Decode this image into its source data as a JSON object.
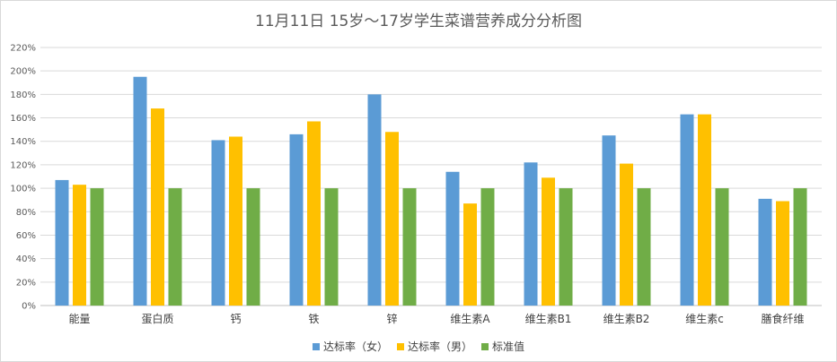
{
  "chart_data": {
    "type": "bar",
    "title": "11月11日 15岁～17岁学生菜谱营养成分分析图",
    "categories": [
      "能量",
      "蛋白质",
      "钙",
      "铁",
      "锌",
      "维生素A",
      "维生素B1",
      "维生素B2",
      "维生素c",
      "膳食纤维"
    ],
    "series": [
      {
        "name": "达标率（女）",
        "color": "#5b9bd5",
        "values": [
          107,
          195,
          141,
          146,
          180,
          114,
          122,
          145,
          163,
          91
        ]
      },
      {
        "name": "达标率（男）",
        "color": "#ffc000",
        "values": [
          103,
          168,
          144,
          157,
          148,
          87,
          109,
          121,
          163,
          89
        ]
      },
      {
        "name": "标准值",
        "color": "#70ad47",
        "values": [
          100,
          100,
          100,
          100,
          100,
          100,
          100,
          100,
          100,
          100
        ]
      }
    ],
    "ylim": [
      0,
      220
    ],
    "yticks": [
      "0%",
      "20%",
      "40%",
      "60%",
      "80%",
      "100%",
      "120%",
      "140%",
      "160%",
      "180%",
      "200%",
      "220%"
    ],
    "grid": true,
    "legend_position": "bottom"
  }
}
